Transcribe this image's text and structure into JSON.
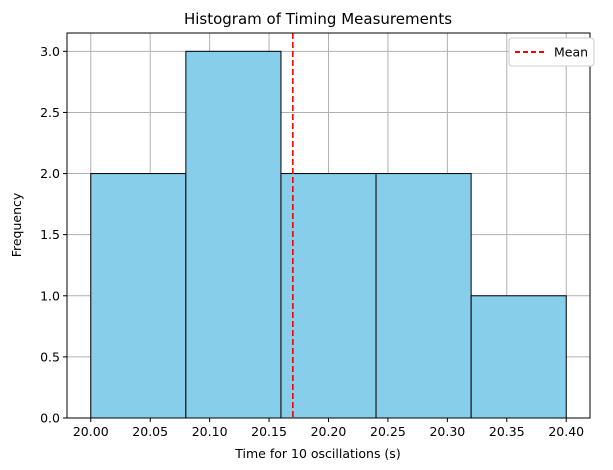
{
  "chart_data": {
    "type": "bar",
    "title": "Histogram of Timing Measurements",
    "xlabel": "Time for 10 oscillations (s)",
    "ylabel": "Frequency",
    "bins": [
      {
        "start": 20.0,
        "end": 20.08,
        "count": 2
      },
      {
        "start": 20.08,
        "end": 20.16,
        "count": 3
      },
      {
        "start": 20.16,
        "end": 20.24,
        "count": 2
      },
      {
        "start": 20.24,
        "end": 20.32,
        "count": 2
      },
      {
        "start": 20.32,
        "end": 20.4,
        "count": 1
      }
    ],
    "mean": 20.17,
    "xlim": [
      19.98,
      20.42
    ],
    "ylim": [
      0,
      3.15
    ],
    "xticks": [
      "20.00",
      "20.05",
      "20.10",
      "20.15",
      "20.20",
      "20.25",
      "20.30",
      "20.35",
      "20.40"
    ],
    "yticks": [
      "0.0",
      "0.5",
      "1.0",
      "1.5",
      "2.0",
      "2.5",
      "3.0"
    ],
    "grid": true,
    "legend": {
      "position": "top-right",
      "entries": [
        {
          "label": "Mean",
          "style": "dashed",
          "color": "#ff0000"
        }
      ]
    },
    "colors": {
      "bar_fill": "#87ceeb",
      "bar_edge": "#000000",
      "grid": "#b0b0b0",
      "mean_line": "#ff0000"
    }
  }
}
